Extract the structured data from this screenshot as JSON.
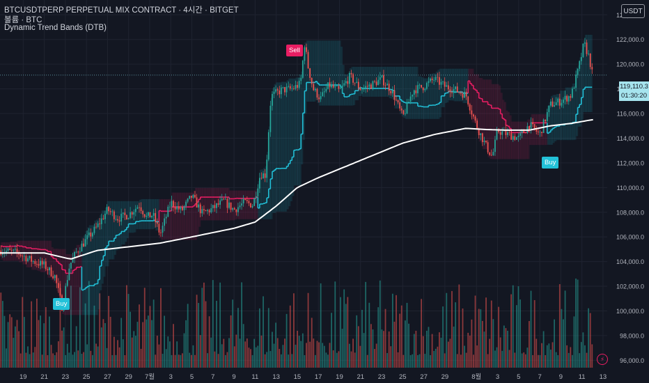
{
  "header": {
    "title": "BTCUSDTPERP PERPETUAL MIX CONTRACT · 4시간 · BITGET",
    "volume_label": "볼륨 · BTC",
    "indicator_name": "Dynamic Trend Bands (DTB)"
  },
  "currency_button": "USDT",
  "last_price": "119,110.3",
  "countdown": "01:30:20",
  "signals": {
    "sell": "Sell",
    "buy": "Buy",
    "buy_early": "Buy"
  },
  "colors": {
    "background": "#131722",
    "up": "#26a69a",
    "down": "#ef5350",
    "band_bull": "#22c1d8",
    "band_bear": "#e91e63",
    "ma": "#ffffff"
  },
  "chart_data": {
    "type": "candlestick",
    "ylim": [
      95400,
      125200
    ],
    "y_ticks": [
      "96,000.0",
      "98,000.0",
      "100,000.0",
      "102,000.0",
      "104,000.0",
      "106,000.0",
      "108,000.0",
      "110,000.0",
      "112,000.0",
      "114,000.0",
      "116,000.0",
      "118,000.0",
      "120,000.0",
      "122,000.0",
      "124,000.0"
    ],
    "x_tick_labels": [
      "19",
      "21",
      "23",
      "25",
      "27",
      "29",
      "7월",
      "3",
      "5",
      "7",
      "9",
      "11",
      "13",
      "15",
      "17",
      "19",
      "21",
      "23",
      "25",
      "27",
      "29",
      "8월",
      "3",
      "5",
      "7",
      "9",
      "11",
      "13"
    ],
    "x_ticks_pos_day": [
      -12,
      -10,
      -8,
      -6,
      -4,
      -2,
      0,
      2,
      4,
      6,
      8,
      10,
      12,
      14,
      16,
      18,
      20,
      22,
      24,
      26,
      28,
      31,
      33,
      35,
      37,
      39,
      41,
      43
    ],
    "candle_anchors_day_price": [
      [
        -14.0,
        104900
      ],
      [
        -12.5,
        104700
      ],
      [
        -11.0,
        104000
      ],
      [
        -10.0,
        103700
      ],
      [
        -9.0,
        102800
      ],
      [
        -8.3,
        100300
      ],
      [
        -7.6,
        103700
      ],
      [
        -7.0,
        104700
      ],
      [
        -6.0,
        105800
      ],
      [
        -5.0,
        106800
      ],
      [
        -4.0,
        108200
      ],
      [
        -3.0,
        107500
      ],
      [
        -2.0,
        107800
      ],
      [
        -1.0,
        108600
      ],
      [
        -0.3,
        107600
      ],
      [
        0.3,
        107800
      ],
      [
        1.0,
        106200
      ],
      [
        2.0,
        108800
      ],
      [
        3.0,
        108100
      ],
      [
        4.0,
        109300
      ],
      [
        5.0,
        107900
      ],
      [
        6.0,
        108300
      ],
      [
        7.0,
        108900
      ],
      [
        8.0,
        108200
      ],
      [
        9.0,
        108800
      ],
      [
        9.8,
        108600
      ],
      [
        10.5,
        111100
      ],
      [
        11.0,
        111000
      ],
      [
        11.5,
        117400
      ],
      [
        12.5,
        117900
      ],
      [
        13.5,
        118000
      ],
      [
        14.3,
        118400
      ],
      [
        14.7,
        121700
      ],
      [
        15.0,
        119900
      ],
      [
        15.5,
        118000
      ],
      [
        16.2,
        117200
      ],
      [
        17.0,
        118300
      ],
      [
        18.0,
        117800
      ],
      [
        19.0,
        119000
      ],
      [
        20.0,
        118000
      ],
      [
        21.0,
        118300
      ],
      [
        22.0,
        118800
      ],
      [
        23.0,
        117800
      ],
      [
        24.0,
        115700
      ],
      [
        25.0,
        117900
      ],
      [
        26.0,
        118200
      ],
      [
        27.0,
        118800
      ],
      [
        28.0,
        118200
      ],
      [
        29.0,
        117900
      ],
      [
        30.0,
        117500
      ],
      [
        31.0,
        115000
      ],
      [
        32.0,
        113200
      ],
      [
        32.5,
        112500
      ],
      [
        33.0,
        114600
      ],
      [
        34.0,
        114300
      ],
      [
        35.0,
        114000
      ],
      [
        36.0,
        115100
      ],
      [
        37.0,
        114300
      ],
      [
        38.0,
        116700
      ],
      [
        39.0,
        117000
      ],
      [
        40.0,
        117500
      ],
      [
        40.7,
        119700
      ],
      [
        41.2,
        121700
      ],
      [
        41.7,
        120500
      ],
      [
        42.0,
        119110
      ]
    ],
    "ma_anchors_day_price": [
      [
        -14.0,
        104700
      ],
      [
        -10.0,
        104700
      ],
      [
        -7.5,
        104200
      ],
      [
        -5.0,
        104900
      ],
      [
        -2.0,
        105200
      ],
      [
        1.0,
        105500
      ],
      [
        4.0,
        106000
      ],
      [
        8.0,
        106700
      ],
      [
        10.0,
        107200
      ],
      [
        12.0,
        108500
      ],
      [
        14.0,
        110000
      ],
      [
        16.0,
        110800
      ],
      [
        20.0,
        112200
      ],
      [
        24.0,
        113600
      ],
      [
        27.0,
        114300
      ],
      [
        30.0,
        114800
      ],
      [
        32.0,
        114700
      ],
      [
        34.0,
        114650
      ],
      [
        36.0,
        114650
      ],
      [
        38.0,
        115000
      ],
      [
        40.0,
        115200
      ],
      [
        42.0,
        115500
      ]
    ]
  }
}
